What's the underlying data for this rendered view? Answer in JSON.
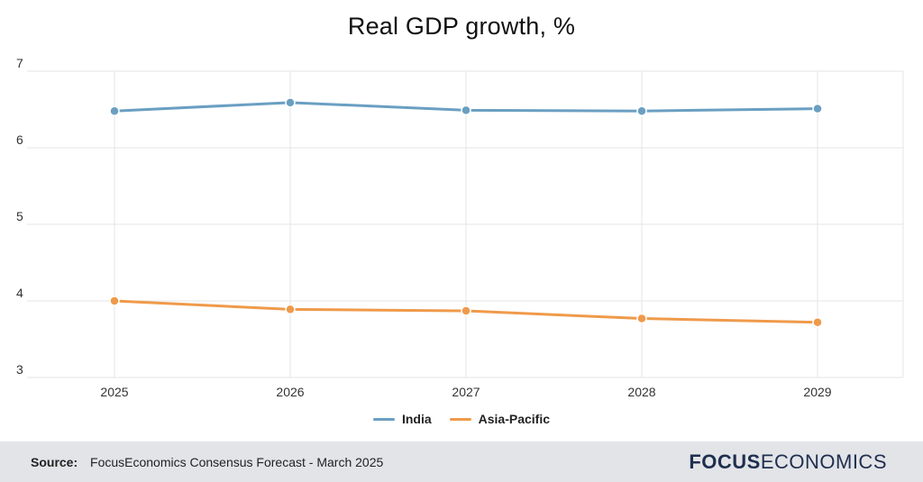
{
  "chart_data": {
    "type": "line",
    "title": "Real GDP growth, %",
    "categories": [
      "2025",
      "2026",
      "2027",
      "2028",
      "2029"
    ],
    "series": [
      {
        "name": "India",
        "color": "#6a9fc2",
        "values": [
          6.48,
          6.59,
          6.49,
          6.48,
          6.51
        ]
      },
      {
        "name": "Asia-Pacific",
        "color": "#ef9a4a",
        "values": [
          4.0,
          3.89,
          3.87,
          3.77,
          3.72
        ]
      }
    ],
    "ylim": [
      3,
      7
    ],
    "yticks": [
      "3",
      "4",
      "5",
      "6",
      "7"
    ],
    "xlabel": "",
    "ylabel": "",
    "grid": true,
    "legend": "bottom-center"
  },
  "footer": {
    "source_label": "Source:",
    "source_text": "FocusEconomics Consensus Forecast - March 2025",
    "logo_bold": "FOCUS",
    "logo_light": "ECONOMICS"
  }
}
